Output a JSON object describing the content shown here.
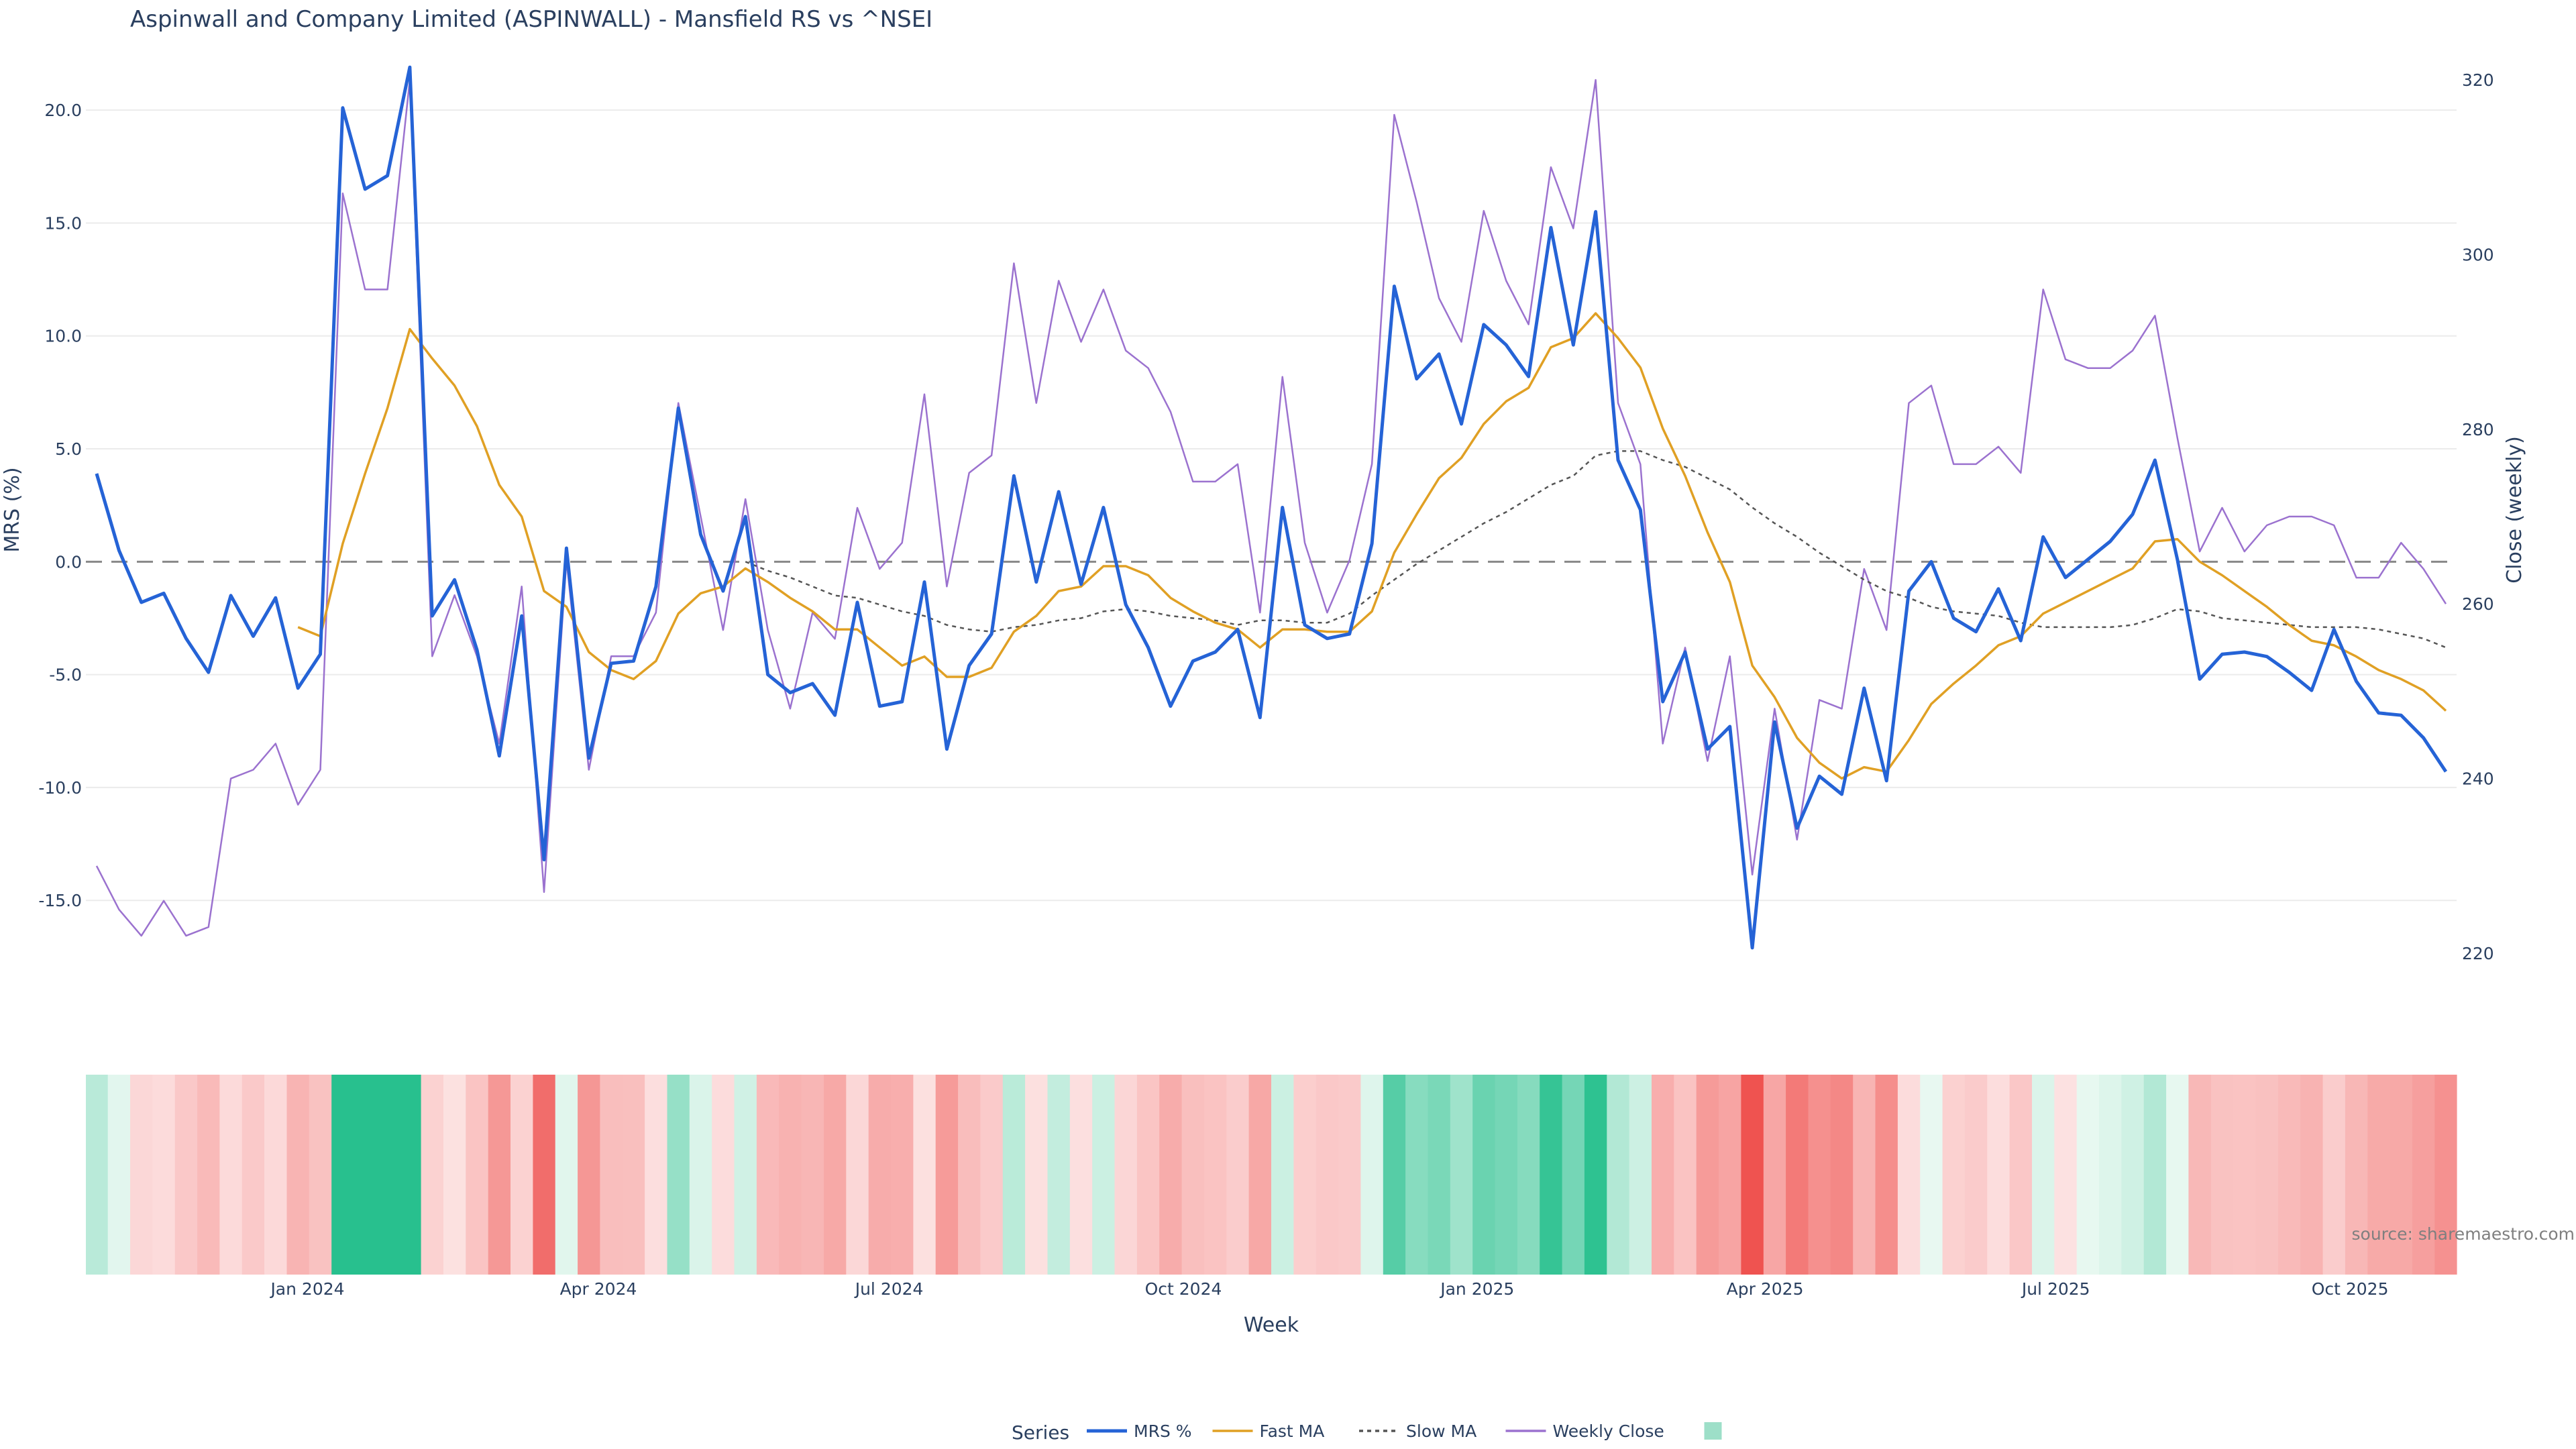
{
  "chart_data": {
    "type": "line",
    "title": "Aspinwall and Company Limited (ASPINWALL) - Mansfield RS vs ^NSEI",
    "xlabel": "Week",
    "ylabel_left": "MRS (%)",
    "ylabel_right": "Close (weekly)",
    "x_start": "2023-10-27",
    "x_step_days": 7,
    "x_ticks": [
      "Jan 2024",
      "Apr 2024",
      "Jul 2024",
      "Oct 2024",
      "Jan 2025",
      "Apr 2025",
      "Jul 2025",
      "Oct 2025"
    ],
    "y_left_ticks": [
      20.0,
      15.0,
      10.0,
      5.0,
      0.0,
      -5.0,
      -10.0,
      -15.0
    ],
    "y_left_range": [
      -18.5,
      22.5
    ],
    "y_right_ticks": [
      320,
      300,
      280,
      260,
      240,
      220
    ],
    "y_right_range": [
      217,
      323
    ],
    "legend_title": "Series",
    "legend_position": "bottom",
    "source_note": "source: sharemaestro.com",
    "series": [
      {
        "name": "MRS %",
        "axis": "left",
        "color": "#2563d6",
        "style": "solid",
        "values": [
          3.9,
          0.5,
          -1.8,
          -1.4,
          -3.4,
          -4.9,
          -1.5,
          -3.3,
          -1.6,
          -5.6,
          -4.1,
          20.1,
          16.5,
          17.1,
          21.9,
          -2.4,
          -0.8,
          -3.9,
          -8.6,
          -2.4,
          -13.2,
          0.6,
          -8.7,
          -4.5,
          -4.4,
          -1.1,
          6.8,
          1.2,
          -1.3,
          2.0,
          -5.0,
          -5.8,
          -5.4,
          -6.8,
          -1.8,
          -6.4,
          -6.2,
          -0.9,
          -8.3,
          -4.6,
          -3.2,
          3.8,
          -0.9,
          3.1,
          -1.0,
          2.4,
          -1.9,
          -3.8,
          -6.4,
          -4.4,
          -4.0,
          -3.0,
          -6.9,
          2.4,
          -2.8,
          -3.4,
          -3.2,
          0.8,
          12.2,
          8.1,
          9.2,
          6.1,
          10.5,
          9.6,
          8.2,
          14.8,
          9.6,
          15.5,
          4.5,
          2.3,
          -6.2,
          -4.0,
          -8.3,
          -7.3,
          -17.1,
          -7.1,
          -11.8,
          -9.5,
          -10.3,
          -5.6,
          -9.7,
          -1.3,
          0.0,
          -2.5,
          -3.1,
          -1.2,
          -3.5,
          1.1,
          -0.7,
          0.1,
          0.9,
          2.1,
          4.5,
          0.1,
          -5.2,
          -4.1,
          -4.0,
          -4.2,
          -4.9,
          -5.7,
          -3.0,
          -5.3,
          -6.7,
          -6.8,
          -7.8,
          -9.3
        ]
      },
      {
        "name": "Fast MA",
        "axis": "left",
        "color": "#e0a024",
        "style": "solid",
        "values": [
          null,
          null,
          null,
          null,
          null,
          null,
          null,
          null,
          null,
          -2.9,
          -3.3,
          0.8,
          3.9,
          6.8,
          10.3,
          9.0,
          7.8,
          6.0,
          3.4,
          2.0,
          -1.3,
          -2.0,
          -4.0,
          -4.8,
          -5.2,
          -4.4,
          -2.3,
          -1.4,
          -1.1,
          -0.3,
          -0.9,
          -1.6,
          -2.2,
          -3.0,
          -3.0,
          -3.8,
          -4.6,
          -4.2,
          -5.1,
          -5.1,
          -4.7,
          -3.1,
          -2.4,
          -1.3,
          -1.1,
          -0.2,
          -0.2,
          -0.6,
          -1.6,
          -2.2,
          -2.7,
          -3.0,
          -3.8,
          -3.0,
          -3.0,
          -3.1,
          -3.1,
          -2.2,
          0.4,
          2.1,
          3.7,
          4.6,
          6.1,
          7.1,
          7.7,
          9.5,
          9.9,
          11.0,
          9.9,
          8.6,
          5.9,
          3.8,
          1.3,
          -0.9,
          -4.6,
          -6.0,
          -7.8,
          -8.9,
          -9.6,
          -9.1,
          -9.3,
          -7.9,
          -6.3,
          -5.4,
          -4.6,
          -3.7,
          -3.3,
          -2.3,
          -1.8,
          -1.3,
          -0.8,
          -0.3,
          0.9,
          1.0,
          0.0,
          -0.6,
          -1.3,
          -2.0,
          -2.8,
          -3.5,
          -3.7,
          -4.2,
          -4.8,
          -5.2,
          -5.7,
          -6.6
        ]
      },
      {
        "name": "Slow MA",
        "axis": "left",
        "color": "#555555",
        "style": "dotted",
        "values": [
          null,
          null,
          null,
          null,
          null,
          null,
          null,
          null,
          null,
          null,
          null,
          null,
          null,
          null,
          null,
          null,
          null,
          null,
          null,
          null,
          null,
          null,
          null,
          null,
          null,
          null,
          null,
          null,
          null,
          0.0,
          -0.4,
          -0.7,
          -1.1,
          -1.5,
          -1.6,
          -1.9,
          -2.2,
          -2.4,
          -2.8,
          -3.0,
          -3.1,
          -2.9,
          -2.8,
          -2.6,
          -2.5,
          -2.2,
          -2.1,
          -2.2,
          -2.4,
          -2.5,
          -2.6,
          -2.8,
          -2.6,
          -2.6,
          -2.7,
          -2.7,
          -2.3,
          -1.5,
          -0.8,
          -0.1,
          0.5,
          1.1,
          1.7,
          2.2,
          2.8,
          3.4,
          3.8,
          4.7,
          4.9,
          4.9,
          4.5,
          4.2,
          3.7,
          3.2,
          2.4,
          1.7,
          1.1,
          0.4,
          -0.2,
          -0.8,
          -1.3,
          -1.6,
          -2.0,
          -2.2,
          -2.3,
          -2.4,
          -2.7,
          -2.9,
          -2.9,
          -2.9,
          -2.9,
          -2.8,
          -2.5,
          -2.1,
          -2.2,
          -2.5,
          -2.6,
          -2.7,
          -2.8,
          -2.9,
          -2.9,
          -2.9,
          -3.0,
          -3.2,
          -3.4,
          -3.8
        ]
      },
      {
        "name": "Weekly Close",
        "axis": "right",
        "color": "#9b72cf",
        "style": "solid",
        "values": [
          230,
          225,
          222,
          226,
          222,
          223,
          240,
          241,
          244,
          237,
          241,
          307,
          296,
          296,
          320,
          254,
          261,
          254,
          244,
          262,
          227,
          265,
          241,
          254,
          254,
          259,
          283,
          270,
          257,
          272,
          257,
          248,
          259,
          256,
          271,
          264,
          267,
          284,
          262,
          275,
          277,
          299,
          283,
          297,
          290,
          296,
          289,
          287,
          282,
          274,
          274,
          276,
          259,
          286,
          267,
          259,
          265,
          276,
          316,
          306,
          295,
          290,
          305,
          297,
          292,
          310,
          303,
          320,
          283,
          276,
          244,
          255,
          242,
          254,
          229,
          248,
          233,
          249,
          248,
          264,
          257,
          283,
          285,
          276,
          276,
          278,
          275,
          296,
          288,
          287,
          287,
          289,
          293,
          279,
          266,
          271,
          266,
          269,
          270,
          270,
          269,
          263,
          263,
          267,
          264,
          260
        ]
      },
      {
        "name": "",
        "axis": "heatmap",
        "color": "#9ddfc8",
        "values": []
      }
    ]
  }
}
